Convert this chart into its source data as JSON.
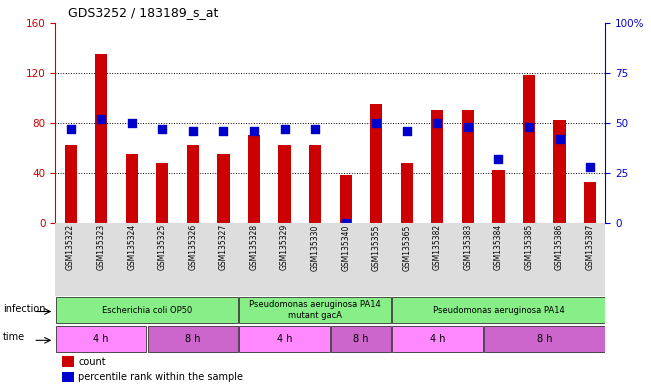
{
  "title": "GDS3252 / 183189_s_at",
  "samples": [
    "GSM135322",
    "GSM135323",
    "GSM135324",
    "GSM135325",
    "GSM135326",
    "GSM135327",
    "GSM135328",
    "GSM135329",
    "GSM135330",
    "GSM135340",
    "GSM135355",
    "GSM135365",
    "GSM135382",
    "GSM135383",
    "GSM135384",
    "GSM135385",
    "GSM135386",
    "GSM135387"
  ],
  "counts": [
    62,
    135,
    55,
    48,
    62,
    55,
    70,
    62,
    62,
    38,
    95,
    48,
    90,
    90,
    42,
    118,
    82,
    33
  ],
  "percentiles": [
    47,
    52,
    50,
    47,
    46,
    46,
    46,
    47,
    47,
    0,
    50,
    46,
    50,
    48,
    32,
    48,
    42,
    28
  ],
  "bar_color": "#cc0000",
  "dot_color": "#0000cc",
  "ylim_left": [
    0,
    160
  ],
  "ylim_right": [
    0,
    100
  ],
  "yticks_left": [
    0,
    40,
    80,
    120,
    160
  ],
  "yticks_right": [
    0,
    25,
    50,
    75,
    100
  ],
  "yticklabels_right": [
    "0",
    "25",
    "50",
    "75",
    "100%"
  ],
  "infection_groups": [
    {
      "label": "Escherichia coli OP50",
      "start": 0,
      "end": 6
    },
    {
      "label": "Pseudomonas aeruginosa PA14\nmutant gacA",
      "start": 6,
      "end": 11
    },
    {
      "label": "Pseudomonas aeruginosa PA14",
      "start": 11,
      "end": 18
    }
  ],
  "time_groups": [
    {
      "label": "4 h",
      "start": 0,
      "end": 3,
      "color": "#ff88ff"
    },
    {
      "label": "8 h",
      "start": 3,
      "end": 6,
      "color": "#cc66cc"
    },
    {
      "label": "4 h",
      "start": 6,
      "end": 9,
      "color": "#ff88ff"
    },
    {
      "label": "8 h",
      "start": 9,
      "end": 11,
      "color": "#cc66cc"
    },
    {
      "label": "4 h",
      "start": 11,
      "end": 14,
      "color": "#ff88ff"
    },
    {
      "label": "8 h",
      "start": 14,
      "end": 18,
      "color": "#cc66cc"
    }
  ],
  "infection_color": "#88ee88",
  "infection_label": "infection",
  "time_label": "time",
  "legend_count": "count",
  "legend_percentile": "percentile rank within the sample",
  "background_color": "#ffffff",
  "bar_width": 0.4,
  "dot_size": 30
}
